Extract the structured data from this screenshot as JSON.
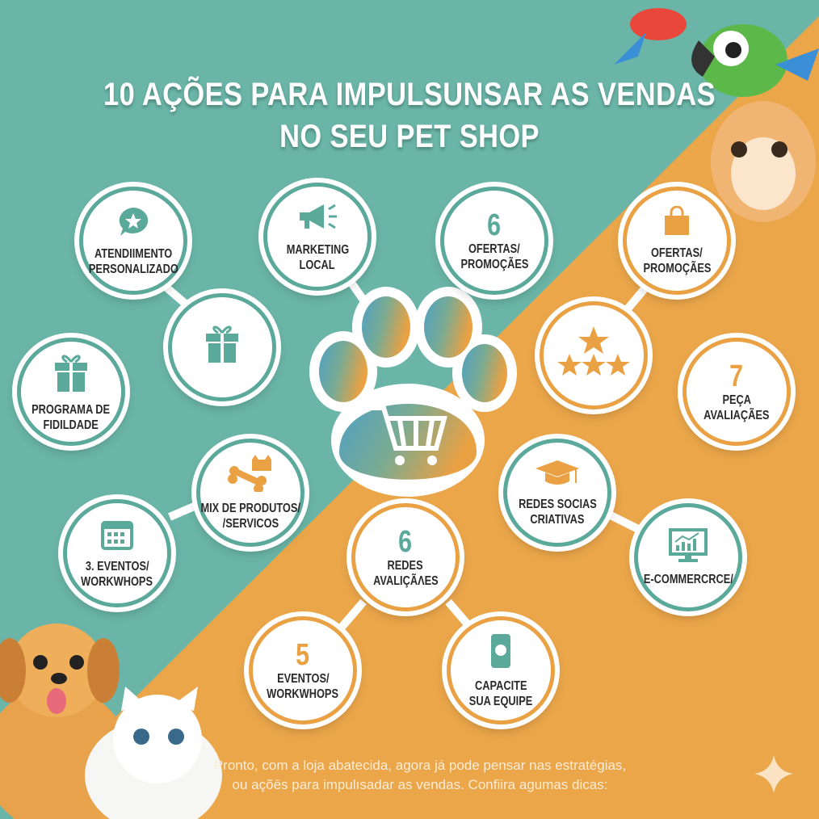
{
  "colors": {
    "teal": "#6ab5a7",
    "orange": "#eba64a",
    "teal_accent": "#5aa99b",
    "orange_accent": "#e9a144"
  },
  "title": {
    "line1": "10 AÇÕES PARA IMPULSUNSAR AS VENDAS",
    "line2": "NO SEU PET SHOP"
  },
  "nodes": [
    {
      "id": "atendimento",
      "icon": "chat-star-icon",
      "lines": [
        "ATENDIIMENTO",
        "PERSONALIZADO"
      ]
    },
    {
      "id": "marketing",
      "icon": "megaphone-icon",
      "lines": [
        "MARKETING",
        "LOCAL"
      ]
    },
    {
      "id": "ofertas-6",
      "number": "6",
      "lines": [
        "OFERTAS/",
        "PROMOÇÃES"
      ]
    },
    {
      "id": "ofertas-bag",
      "icon": "shopping-bag-icon",
      "lines": [
        "OFERTAS/",
        "PROMOÇÃES"
      ]
    },
    {
      "id": "gift",
      "icon": "gift-icon"
    },
    {
      "id": "stars",
      "icon": "stars-icon"
    },
    {
      "id": "fidelidade",
      "icon": "gift-icon",
      "lines": [
        "PROGRAMA DE",
        "FIDILDADE"
      ]
    },
    {
      "id": "peca",
      "number": "7",
      "lines": [
        "PEÇA",
        "AVALIAÇÃES"
      ]
    },
    {
      "id": "mix",
      "icon": "bone-cat-icon",
      "lines": [
        "MIX DE PRODUTOS/",
        "/SERVICOS"
      ]
    },
    {
      "id": "redes-socias",
      "icon": "graduation-cap-icon",
      "lines": [
        "REDES SOCIAS",
        "CRIATIVAS"
      ]
    },
    {
      "id": "eventos-3",
      "icon": "calendar-icon",
      "lines": [
        "3. EVENTOS/",
        "WORKWHOPS"
      ]
    },
    {
      "id": "ecommerce",
      "icon": "monitor-chart-icon",
      "lines": [
        "E-COMMERCRCE/"
      ]
    },
    {
      "id": "redes-6",
      "number": "6",
      "lines": [
        "REDES",
        "AVALIÇÃΛES"
      ]
    },
    {
      "id": "eventos-5",
      "number": "5",
      "lines": [
        "EVENTOS/",
        "WORKWHOPS"
      ]
    },
    {
      "id": "capacite",
      "icon": "smartphone-icon",
      "lines": [
        "CAPACITE",
        "SUA EQUIPE"
      ]
    }
  ],
  "center": {
    "icon": "paw-cart-icon"
  },
  "footer": {
    "line1": "Pronto, com a loja abatecida, agora já pode pensar nas estratégias,",
    "line2": "ou açõēs para impulısadar as vendas. Confiira agumas dicas:"
  }
}
